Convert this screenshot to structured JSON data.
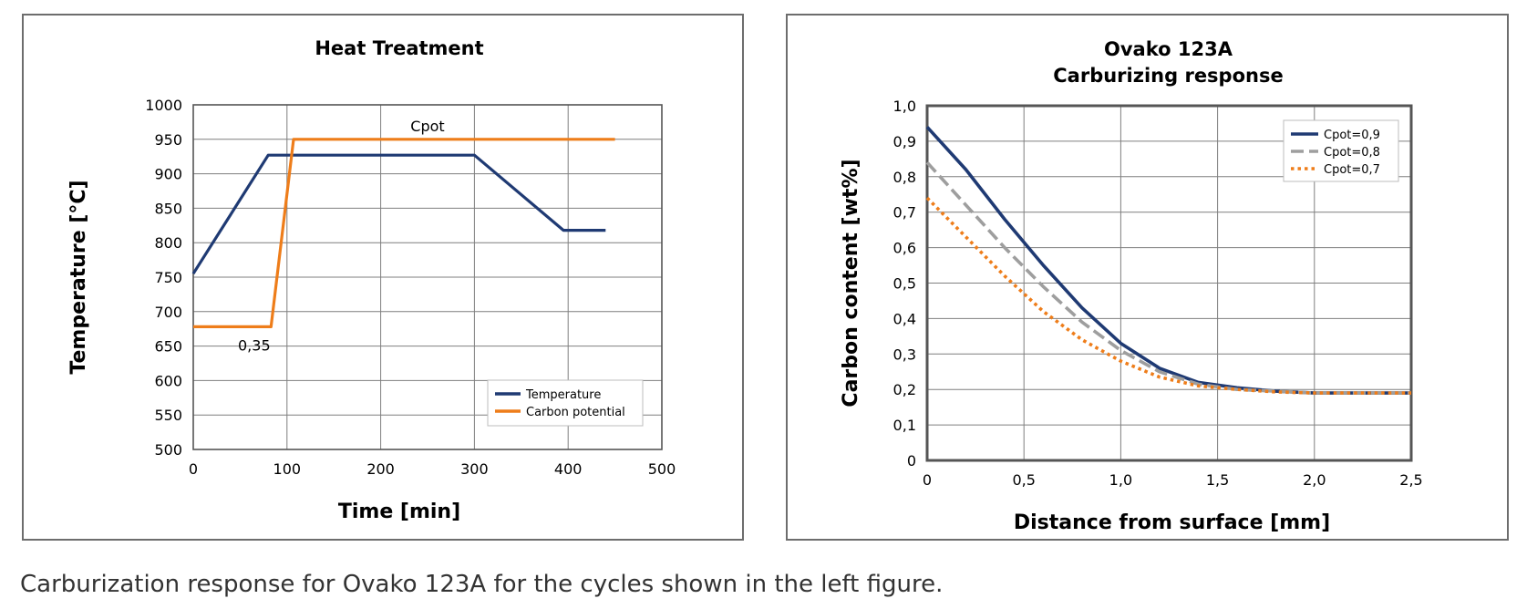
{
  "caption": "Carburization response for Ovako 123A for the cycles shown in the left figure.",
  "colors": {
    "navy": "#1f3a73",
    "orange": "#ee7d1a",
    "gray": "#9e9e9e",
    "grid": "#7f7f7f",
    "frame": "#555555"
  },
  "chart_data": [
    {
      "type": "line",
      "title": "Heat Treatment",
      "xlabel": "Time [min]",
      "ylabel": "Temperature [°C]",
      "xlim": [
        0,
        500
      ],
      "ylim": [
        500,
        1000
      ],
      "xticks": [
        "0",
        "100",
        "200",
        "300",
        "400",
        "500"
      ],
      "yticks": [
        "500",
        "550",
        "600",
        "650",
        "700",
        "750",
        "800",
        "850",
        "900",
        "950",
        "1000"
      ],
      "grid": true,
      "legend_position": "bottom-right",
      "annotations": [
        "Cpot",
        "0,35"
      ],
      "series": [
        {
          "name": "Temperature",
          "color": "#1f3a73",
          "dash": "solid",
          "x": [
            0,
            80,
            300,
            395,
            440
          ],
          "y": [
            755,
            927,
            927,
            818,
            818
          ]
        },
        {
          "name": "Carbon potential",
          "color": "#ee7d1a",
          "dash": "solid",
          "x": [
            0,
            83,
            107,
            450
          ],
          "y": [
            678,
            678,
            950,
            950
          ]
        }
      ]
    },
    {
      "type": "line",
      "title": "Ovako 123A",
      "subtitle": "Carburizing response",
      "xlabel": "Distance from surface [mm]",
      "ylabel": "Carbon content [wt%]",
      "xlim": [
        0,
        2.5
      ],
      "ylim": [
        0,
        1.0
      ],
      "xticks": [
        "0",
        "0,5",
        "1,0",
        "1,5",
        "2,0",
        "2,5"
      ],
      "yticks": [
        "0",
        "0,1",
        "0,2",
        "0,3",
        "0,4",
        "0,5",
        "0,6",
        "0,7",
        "0,8",
        "0,9",
        "1,0"
      ],
      "grid": true,
      "legend_position": "top-right",
      "series": [
        {
          "name": "Cpot=0,9",
          "color": "#1f3a73",
          "dash": "solid",
          "x": [
            0,
            0.2,
            0.4,
            0.6,
            0.8,
            1.0,
            1.2,
            1.4,
            1.6,
            1.8,
            2.0,
            2.5
          ],
          "y": [
            0.94,
            0.82,
            0.68,
            0.55,
            0.43,
            0.33,
            0.26,
            0.22,
            0.205,
            0.195,
            0.19,
            0.19
          ]
        },
        {
          "name": "Cpot=0,8",
          "color": "#9e9e9e",
          "dash": "dashed",
          "x": [
            0,
            0.2,
            0.4,
            0.6,
            0.8,
            1.0,
            1.2,
            1.4,
            1.6,
            1.8,
            2.0,
            2.5
          ],
          "y": [
            0.84,
            0.72,
            0.6,
            0.49,
            0.39,
            0.31,
            0.25,
            0.215,
            0.2,
            0.195,
            0.19,
            0.19
          ]
        },
        {
          "name": "Cpot=0,7",
          "color": "#ee7d1a",
          "dash": "dotted",
          "x": [
            0,
            0.2,
            0.4,
            0.6,
            0.8,
            1.0,
            1.2,
            1.4,
            1.6,
            1.8,
            2.0,
            2.5
          ],
          "y": [
            0.74,
            0.63,
            0.52,
            0.42,
            0.34,
            0.28,
            0.235,
            0.21,
            0.2,
            0.193,
            0.19,
            0.19
          ]
        }
      ]
    }
  ]
}
